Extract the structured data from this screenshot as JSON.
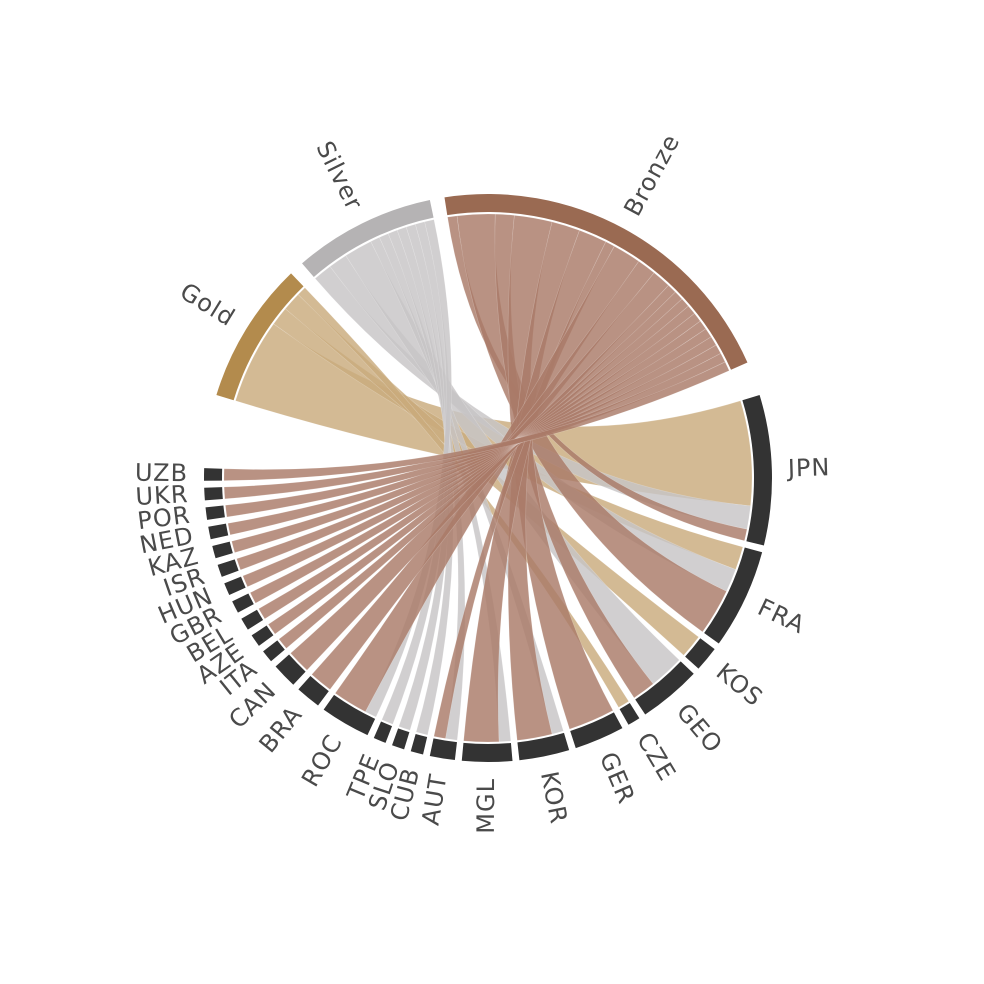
{
  "chart_data": {
    "type": "chord",
    "medal_groups": [
      {
        "name": "Gold",
        "color": "#b38b4d",
        "ribbon": "#c9ab7c"
      },
      {
        "name": "Silver",
        "color": "#b5b3b4",
        "ribbon": "#c7c5c6"
      },
      {
        "name": "Bronze",
        "color": "#9a6a52",
        "ribbon": "#a97a68"
      }
    ],
    "country_color": "#333333",
    "countries": [
      {
        "name": "JPN",
        "gold": 9,
        "silver": 2,
        "bronze": 1
      },
      {
        "name": "FRA",
        "gold": 2,
        "silver": 2,
        "bronze": 4
      },
      {
        "name": "KOS",
        "gold": 2,
        "silver": 0,
        "bronze": 0
      },
      {
        "name": "GEO",
        "gold": 0,
        "silver": 3,
        "bronze": 2
      },
      {
        "name": "CZE",
        "gold": 1,
        "silver": 0,
        "bronze": 0
      },
      {
        "name": "GER",
        "gold": 0,
        "silver": 0,
        "bronze": 4
      },
      {
        "name": "KOR",
        "gold": 0,
        "silver": 1,
        "bronze": 3
      },
      {
        "name": "MGL",
        "gold": 0,
        "silver": 1,
        "bronze": 3
      },
      {
        "name": "AUT",
        "gold": 0,
        "silver": 1,
        "bronze": 1
      },
      {
        "name": "CUB",
        "gold": 0,
        "silver": 1,
        "bronze": 0
      },
      {
        "name": "SLO",
        "gold": 0,
        "silver": 1,
        "bronze": 0
      },
      {
        "name": "TPE",
        "gold": 0,
        "silver": 1,
        "bronze": 0
      },
      {
        "name": "ROC",
        "gold": 0,
        "silver": 1,
        "bronze": 3
      },
      {
        "name": "BRA",
        "gold": 0,
        "silver": 0,
        "bronze": 2
      },
      {
        "name": "CAN",
        "gold": 0,
        "silver": 0,
        "bronze": 2
      },
      {
        "name": "ITA",
        "gold": 0,
        "silver": 0,
        "bronze": 1
      },
      {
        "name": "AZE",
        "gold": 0,
        "silver": 0,
        "bronze": 1
      },
      {
        "name": "BEL",
        "gold": 0,
        "silver": 0,
        "bronze": 1
      },
      {
        "name": "GBR",
        "gold": 0,
        "silver": 0,
        "bronze": 1
      },
      {
        "name": "HUN",
        "gold": 0,
        "silver": 0,
        "bronze": 1
      },
      {
        "name": "ISR",
        "gold": 0,
        "silver": 0,
        "bronze": 1
      },
      {
        "name": "KAZ",
        "gold": 0,
        "silver": 0,
        "bronze": 1
      },
      {
        "name": "NED",
        "gold": 0,
        "silver": 0,
        "bronze": 1
      },
      {
        "name": "POR",
        "gold": 0,
        "silver": 0,
        "bronze": 1
      },
      {
        "name": "UKR",
        "gold": 0,
        "silver": 0,
        "bronze": 1
      },
      {
        "name": "UZB",
        "gold": 0,
        "silver": 0,
        "bronze": 1
      }
    ]
  }
}
